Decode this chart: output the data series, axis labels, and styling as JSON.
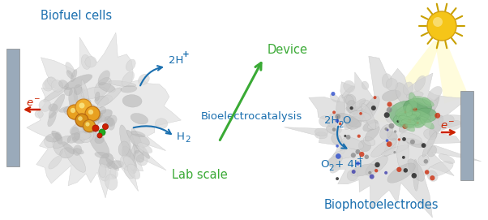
{
  "bg_color": "#ffffff",
  "blue_color": "#1a6faf",
  "green_color": "#3aaa35",
  "red_color": "#cc2200",
  "electrode_color": "#9aaaba",
  "figsize": [
    6.02,
    2.71
  ],
  "dpi": 100,
  "labels": {
    "biofuel_cells": "Biofuel cells",
    "biophotoelectrodes": "Biophotoelectrodes",
    "bioelectrocatalysis": "Bioelectrocatalysis",
    "device": "Device",
    "lab_scale": "Lab scale"
  }
}
